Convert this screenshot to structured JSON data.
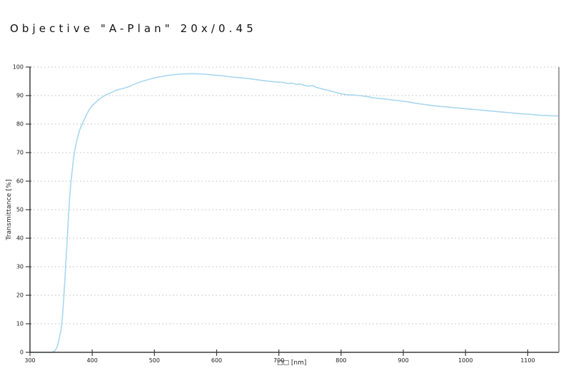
{
  "title": "Objective \"A-Plan\" 20x/0.45",
  "chart_data": {
    "type": "line",
    "title": "Objective \"A-Plan\" 20x/0.45",
    "xlabel": "□□ [nm]",
    "ylabel": "Transmittance [%]",
    "xlim": [
      300,
      1150
    ],
    "ylim": [
      0,
      100
    ],
    "x_ticks": [
      300,
      400,
      500,
      600,
      700,
      800,
      900,
      1000,
      1100
    ],
    "y_ticks": [
      0,
      10,
      20,
      30,
      40,
      50,
      60,
      70,
      80,
      90,
      100
    ],
    "grid": "horizontal-dotted",
    "legend": "none",
    "colors": {
      "line": "#a8d7f0",
      "axis": "#3c3c3c",
      "right_border": "#6e6e6e",
      "grid": "#cccccc",
      "tick_label": "#1a1a1a"
    },
    "series": [
      {
        "name": "transmittance",
        "x": [
          300,
          335,
          340,
          344,
          347,
          350,
          352,
          354,
          356,
          358,
          360,
          362,
          364,
          366,
          368,
          370,
          373,
          376,
          380,
          385,
          390,
          395,
          400,
          410,
          420,
          430,
          440,
          450,
          460,
          470,
          480,
          490,
          500,
          510,
          520,
          530,
          540,
          550,
          560,
          570,
          580,
          590,
          600,
          610,
          620,
          630,
          640,
          650,
          660,
          670,
          680,
          690,
          700,
          708,
          714,
          720,
          728,
          734,
          740,
          748,
          754,
          760,
          770,
          780,
          790,
          800,
          810,
          820,
          830,
          840,
          850,
          860,
          870,
          880,
          890,
          900,
          910,
          920,
          930,
          940,
          950,
          960,
          970,
          980,
          990,
          1000,
          1010,
          1020,
          1030,
          1040,
          1050,
          1060,
          1070,
          1080,
          1090,
          1100,
          1110,
          1120,
          1130,
          1140,
          1148
        ],
        "y": [
          0,
          0,
          0.5,
          2,
          5,
          8,
          12,
          18,
          25,
          33,
          40,
          48,
          55,
          60,
          64,
          68,
          72,
          75,
          78,
          80.5,
          83,
          85,
          86.5,
          88.5,
          90,
          91,
          92,
          92.5,
          93.2,
          94.2,
          95,
          95.6,
          96.2,
          96.6,
          97,
          97.3,
          97.5,
          97.6,
          97.7,
          97.6,
          97.5,
          97.3,
          97.1,
          96.9,
          96.6,
          96.4,
          96.2,
          96,
          95.7,
          95.4,
          95.1,
          94.9,
          94.7,
          94.6,
          94.2,
          94.4,
          93.9,
          94.1,
          93.6,
          93.3,
          93.5,
          92.9,
          92.3,
          91.8,
          91.2,
          90.6,
          90.3,
          90.2,
          90,
          89.7,
          89.3,
          89,
          88.8,
          88.5,
          88.3,
          88,
          87.7,
          87.3,
          87,
          86.7,
          86.4,
          86.2,
          86,
          85.8,
          85.6,
          85.4,
          85.2,
          85,
          84.8,
          84.6,
          84.4,
          84.2,
          84,
          83.8,
          83.6,
          83.5,
          83.3,
          83.1,
          83,
          82.9,
          82.9
        ]
      }
    ]
  }
}
